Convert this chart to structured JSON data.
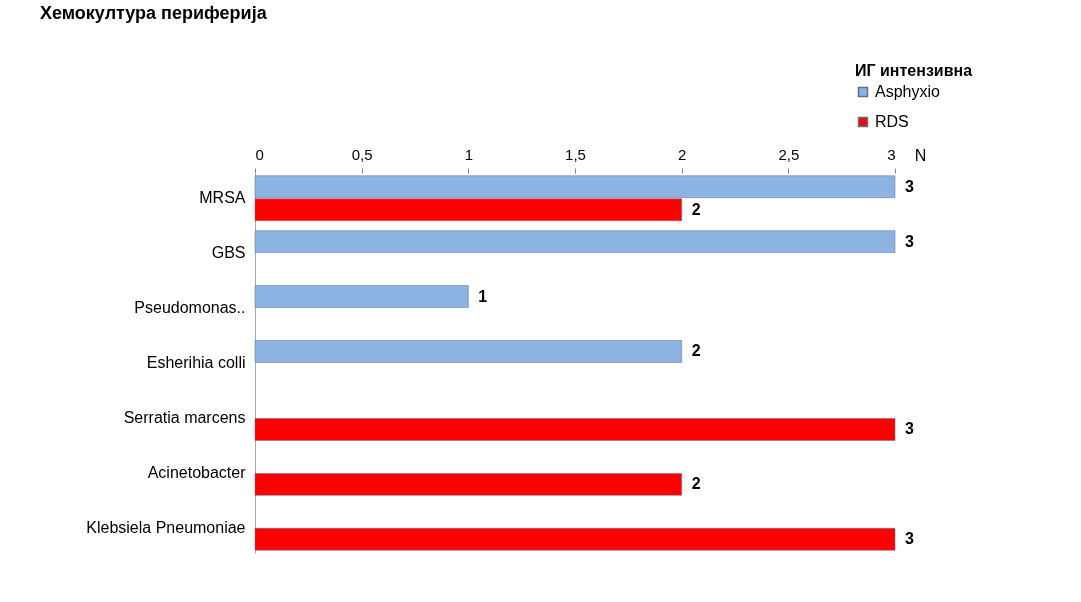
{
  "chart_data": {
    "type": "bar",
    "orientation": "horizontal",
    "title": "Хемокултура периферија",
    "xlabel": "N",
    "legend_title": "ИГ интензивна",
    "legend": "top right",
    "grid": false,
    "data_labels": true,
    "categories": [
      "MRSA",
      "GBS",
      "Pseudomonas..",
      "Esherihia colli",
      "Serratia marcens",
      "Acinetobacter",
      "Klebsiela Pneumoniae"
    ],
    "xlim": [
      0,
      3
    ],
    "xticks": [
      0,
      {
        "value": 0.5,
        "label": "0,5"
      },
      1,
      {
        "value": 1.5,
        "label": "1,5"
      },
      2,
      {
        "value": 2.5,
        "label": "2,5"
      },
      3
    ],
    "series": [
      {
        "name": "Asphyxio",
        "color": "#8db3e2",
        "values": [
          3,
          3,
          1,
          2,
          null,
          null,
          null
        ]
      },
      {
        "name": "RDS",
        "color": "#ff0000",
        "values": [
          2,
          null,
          null,
          null,
          3,
          2,
          3
        ]
      }
    ]
  }
}
